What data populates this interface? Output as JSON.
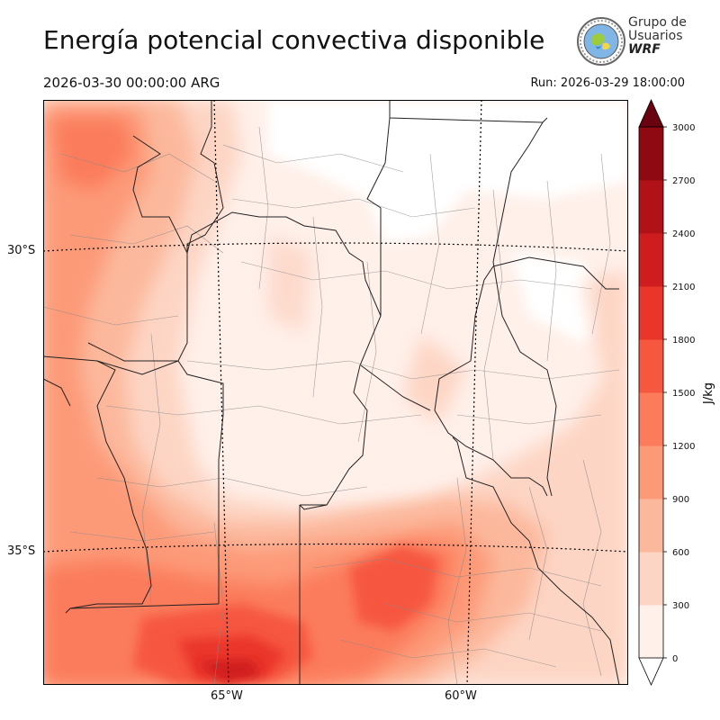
{
  "header": {
    "title": "Energía potencial convectiva disponible",
    "valid_time": "2026-03-30 00:00:00 ARG",
    "run": "Run: 2026-03-29 18:00:00"
  },
  "logo": {
    "line1": "Grupo de",
    "line2": "Usuarios",
    "line3": "WRF"
  },
  "map": {
    "lat_labels": [
      "30°S",
      "35°S"
    ],
    "lon_labels": [
      "65°W",
      "60°W"
    ]
  },
  "colorbar": {
    "label": "J/kg",
    "ticks": [
      "0",
      "300",
      "600",
      "900",
      "1200",
      "1500",
      "1800",
      "2100",
      "2400",
      "2700",
      "3000"
    ],
    "colors": [
      "#fff0ea",
      "#fdd5c4",
      "#fcb89c",
      "#fc9a78",
      "#fb7b5b",
      "#f6573f",
      "#ea362a",
      "#cf1c1f",
      "#b11217",
      "#8e0912"
    ],
    "extend_color": "#6a0310"
  }
}
